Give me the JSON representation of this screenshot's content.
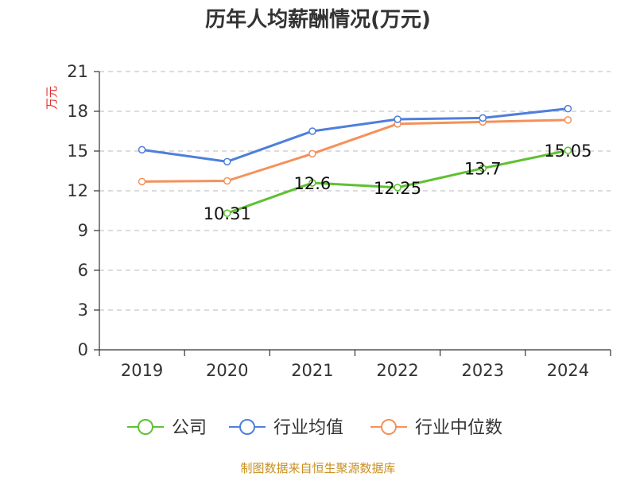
{
  "chart_data": {
    "type": "line",
    "title": "历年人均薪酬情况(万元)",
    "ylabel": "万元",
    "xlabel": "",
    "categories": [
      "2019",
      "2020",
      "2021",
      "2022",
      "2023",
      "2024"
    ],
    "ylim": [
      0,
      21
    ],
    "yticks": [
      0,
      3,
      6,
      9,
      12,
      15,
      18,
      21
    ],
    "grid": true,
    "legend_position": "bottom",
    "series": [
      {
        "name": "公司",
        "key": "company",
        "color": "#5ec132",
        "values": [
          null,
          10.31,
          12.6,
          12.25,
          13.7,
          15.05
        ],
        "labels": [
          "",
          "10.31",
          "12.6",
          "12.25",
          "13.7",
          "15.05"
        ]
      },
      {
        "name": "行业均值",
        "key": "industry-avg",
        "color": "#4e7fdc",
        "values": [
          15.1,
          14.2,
          16.5,
          17.4,
          17.5,
          18.2
        ]
      },
      {
        "name": "行业中位数",
        "key": "industry-median",
        "color": "#f5915a",
        "values": [
          12.7,
          12.75,
          14.8,
          17.05,
          17.2,
          17.35
        ]
      }
    ]
  },
  "source": "制图数据来自恒生聚源数据库"
}
